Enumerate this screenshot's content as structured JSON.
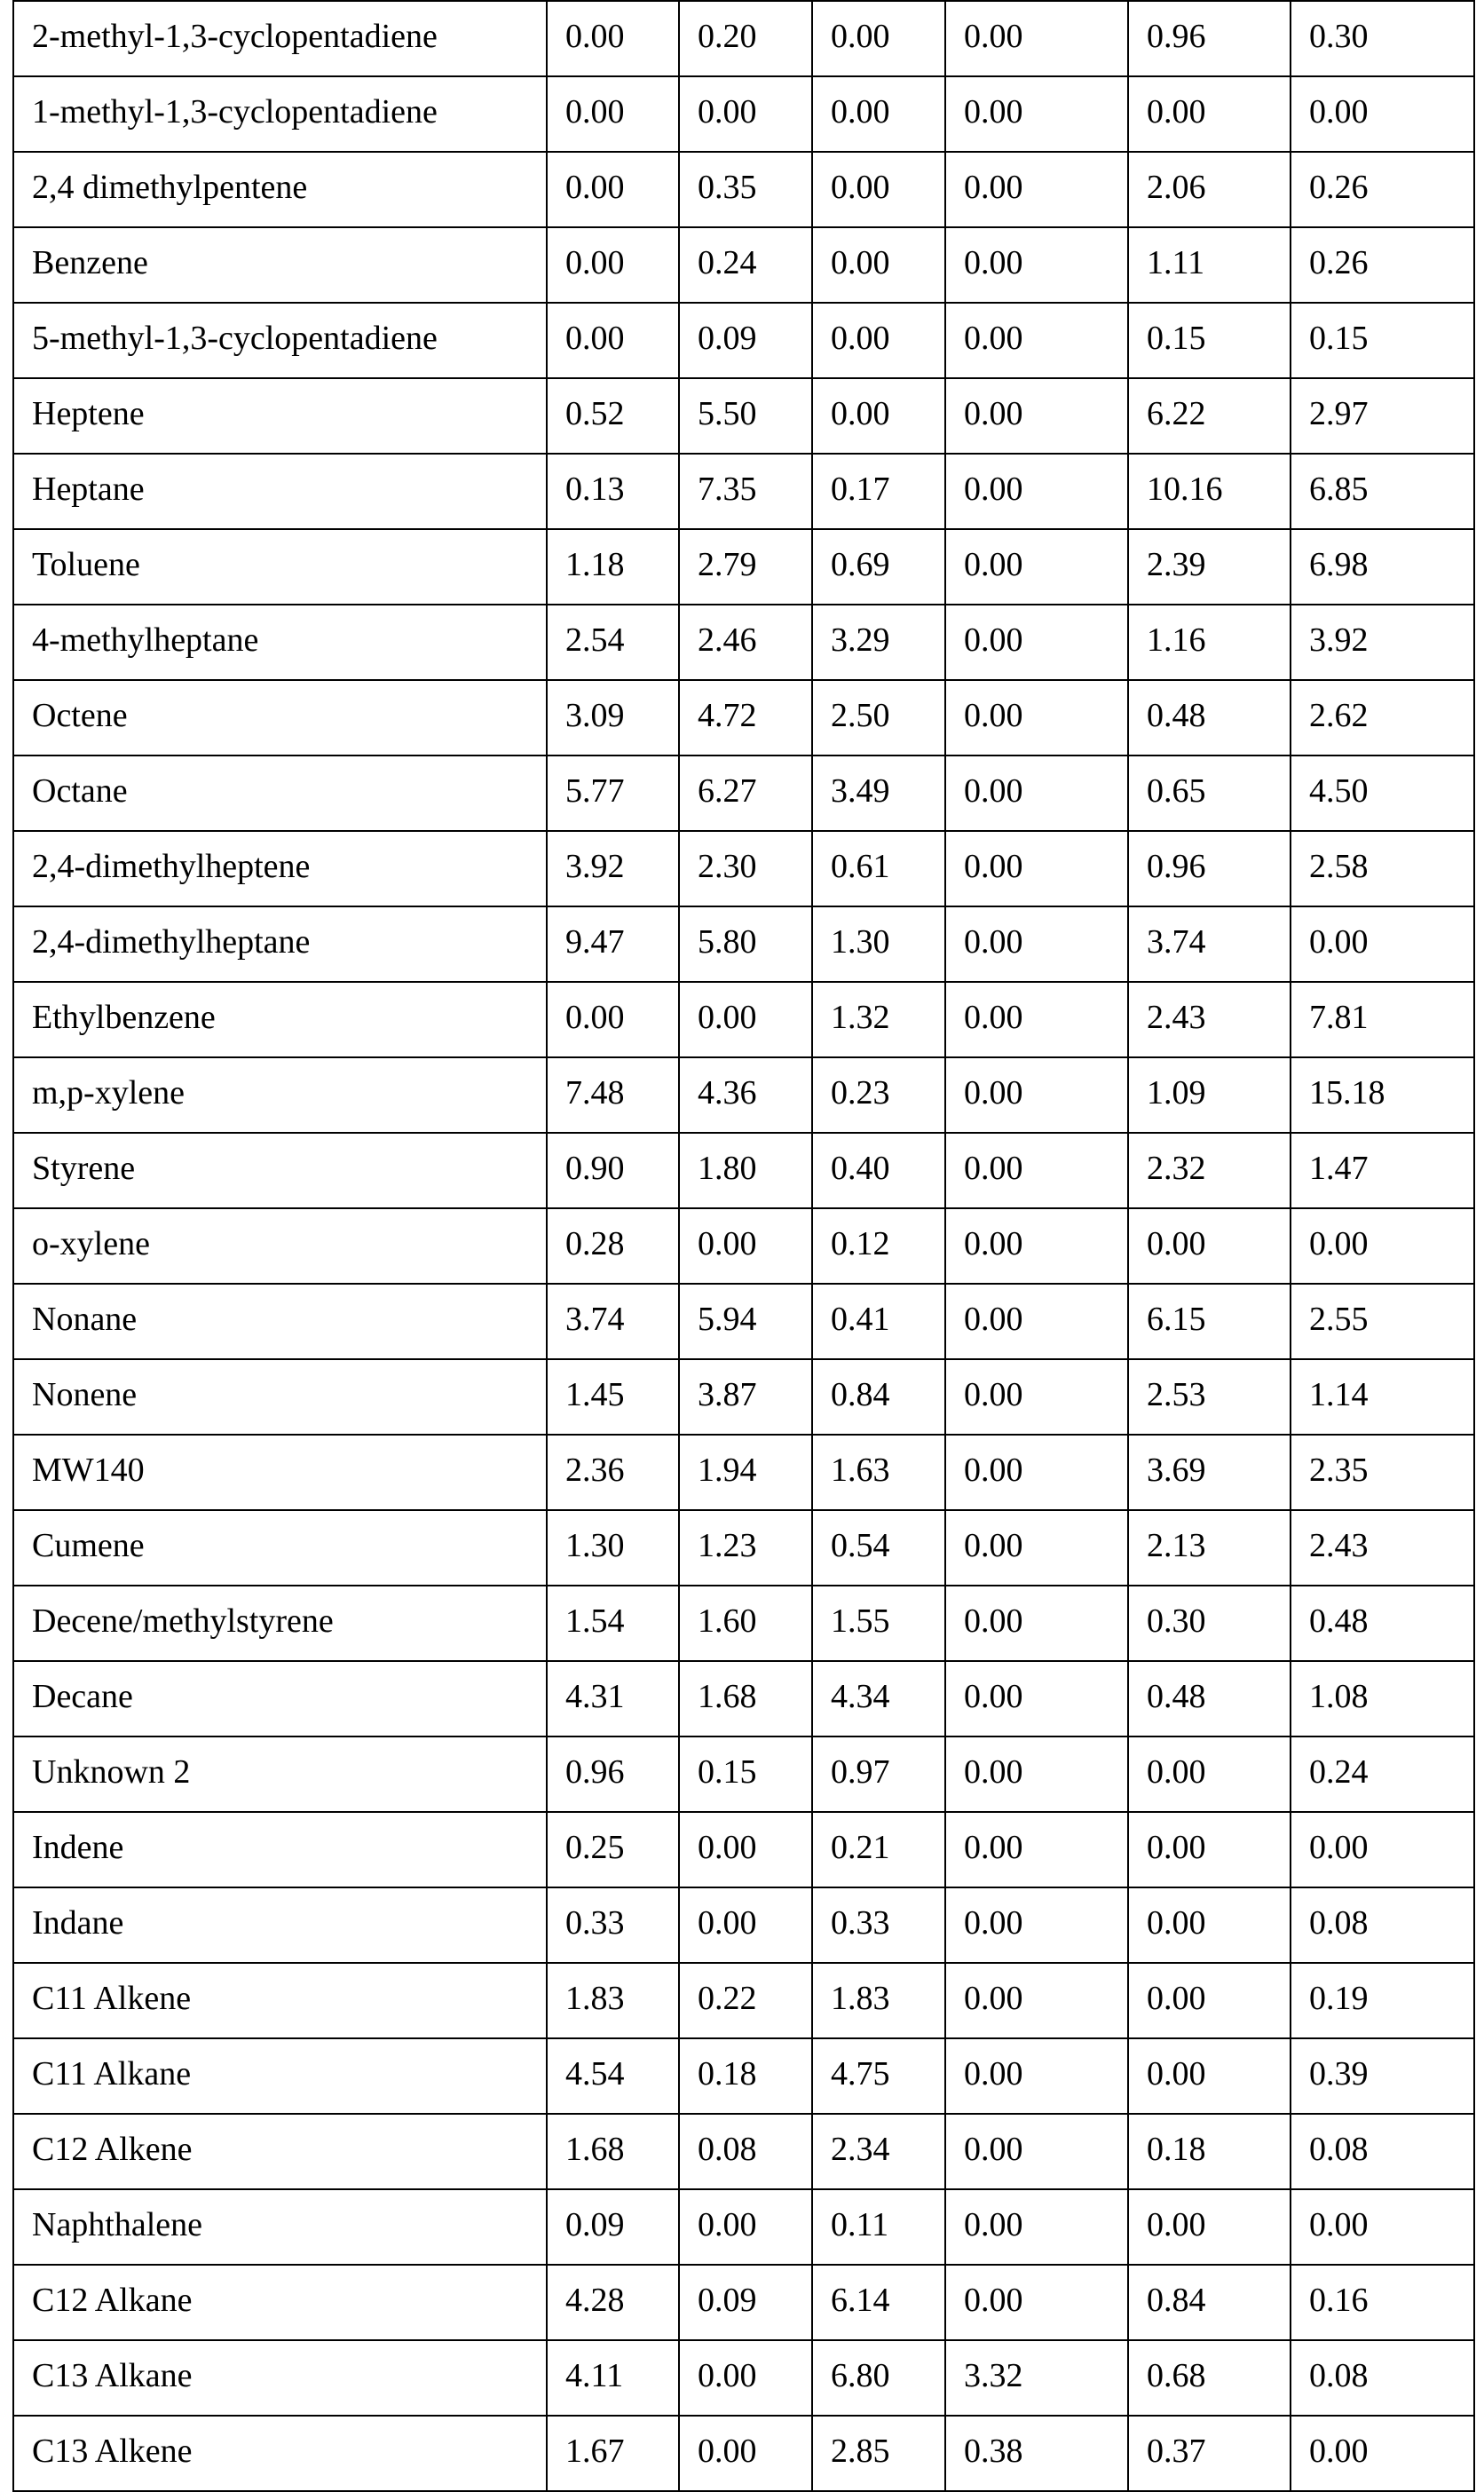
{
  "table": {
    "rows": [
      [
        "2-methyl-1,3-cyclopentadiene",
        "0.00",
        "0.20",
        "0.00",
        "0.00",
        "0.96",
        "0.30"
      ],
      [
        "1-methyl-1,3-cyclopentadiene",
        "0.00",
        "0.00",
        "0.00",
        "0.00",
        "0.00",
        "0.00"
      ],
      [
        "2,4 dimethylpentene",
        "0.00",
        "0.35",
        "0.00",
        "0.00",
        "2.06",
        "0.26"
      ],
      [
        "Benzene",
        "0.00",
        "0.24",
        "0.00",
        "0.00",
        "1.11",
        "0.26"
      ],
      [
        "5-methyl-1,3-cyclopentadiene",
        "0.00",
        "0.09",
        "0.00",
        "0.00",
        "0.15",
        "0.15"
      ],
      [
        "Heptene",
        "0.52",
        "5.50",
        "0.00",
        "0.00",
        "6.22",
        "2.97"
      ],
      [
        "Heptane",
        "0.13",
        "7.35",
        "0.17",
        "0.00",
        "10.16",
        "6.85"
      ],
      [
        "Toluene",
        "1.18",
        "2.79",
        "0.69",
        "0.00",
        "2.39",
        "6.98"
      ],
      [
        "4-methylheptane",
        "2.54",
        "2.46",
        "3.29",
        "0.00",
        "1.16",
        "3.92"
      ],
      [
        "Octene",
        "3.09",
        "4.72",
        "2.50",
        "0.00",
        "0.48",
        "2.62"
      ],
      [
        "Octane",
        "5.77",
        "6.27",
        "3.49",
        "0.00",
        "0.65",
        "4.50"
      ],
      [
        "2,4-dimethylheptene",
        "3.92",
        "2.30",
        "0.61",
        "0.00",
        "0.96",
        "2.58"
      ],
      [
        "2,4-dimethylheptane",
        "9.47",
        "5.80",
        "1.30",
        "0.00",
        "3.74",
        "0.00"
      ],
      [
        "Ethylbenzene",
        "0.00",
        "0.00",
        "1.32",
        "0.00",
        "2.43",
        "7.81"
      ],
      [
        "m,p-xylene",
        "7.48",
        "4.36",
        "0.23",
        "0.00",
        "1.09",
        "15.18"
      ],
      [
        "Styrene",
        "0.90",
        "1.80",
        "0.40",
        "0.00",
        "2.32",
        "1.47"
      ],
      [
        "o-xylene",
        "0.28",
        "0.00",
        "0.12",
        "0.00",
        "0.00",
        "0.00"
      ],
      [
        "Nonane",
        "3.74",
        "5.94",
        "0.41",
        "0.00",
        "6.15",
        "2.55"
      ],
      [
        "Nonene",
        "1.45",
        "3.87",
        "0.84",
        "0.00",
        "2.53",
        "1.14"
      ],
      [
        "MW140",
        "2.36",
        "1.94",
        "1.63",
        "0.00",
        "3.69",
        "2.35"
      ],
      [
        "Cumene",
        "1.30",
        "1.23",
        "0.54",
        "0.00",
        "2.13",
        "2.43"
      ],
      [
        "Decene/methylstyrene",
        "1.54",
        "1.60",
        "1.55",
        "0.00",
        "0.30",
        "0.48"
      ],
      [
        "Decane",
        "4.31",
        "1.68",
        "4.34",
        "0.00",
        "0.48",
        "1.08"
      ],
      [
        "Unknown 2",
        "0.96",
        "0.15",
        "0.97",
        "0.00",
        "0.00",
        "0.24"
      ],
      [
        "Indene",
        "0.25",
        "0.00",
        "0.21",
        "0.00",
        "0.00",
        "0.00"
      ],
      [
        "Indane",
        "0.33",
        "0.00",
        "0.33",
        "0.00",
        "0.00",
        "0.08"
      ],
      [
        "C11 Alkene",
        "1.83",
        "0.22",
        "1.83",
        "0.00",
        "0.00",
        "0.19"
      ],
      [
        "C11 Alkane",
        "4.54",
        "0.18",
        "4.75",
        "0.00",
        "0.00",
        "0.39"
      ],
      [
        "C12 Alkene",
        "1.68",
        "0.08",
        "2.34",
        "0.00",
        "0.18",
        "0.08"
      ],
      [
        "Naphthalene",
        "0.09",
        "0.00",
        "0.11",
        "0.00",
        "0.00",
        "0.00"
      ],
      [
        "C12 Alkane",
        "4.28",
        "0.09",
        "6.14",
        "0.00",
        "0.84",
        "0.16"
      ],
      [
        "C13 Alkane",
        "4.11",
        "0.00",
        "6.80",
        "3.32",
        "0.68",
        "0.08"
      ],
      [
        "C13 Alkene",
        "1.67",
        "0.00",
        "2.85",
        "0.38",
        "0.37",
        "0.00"
      ]
    ]
  }
}
